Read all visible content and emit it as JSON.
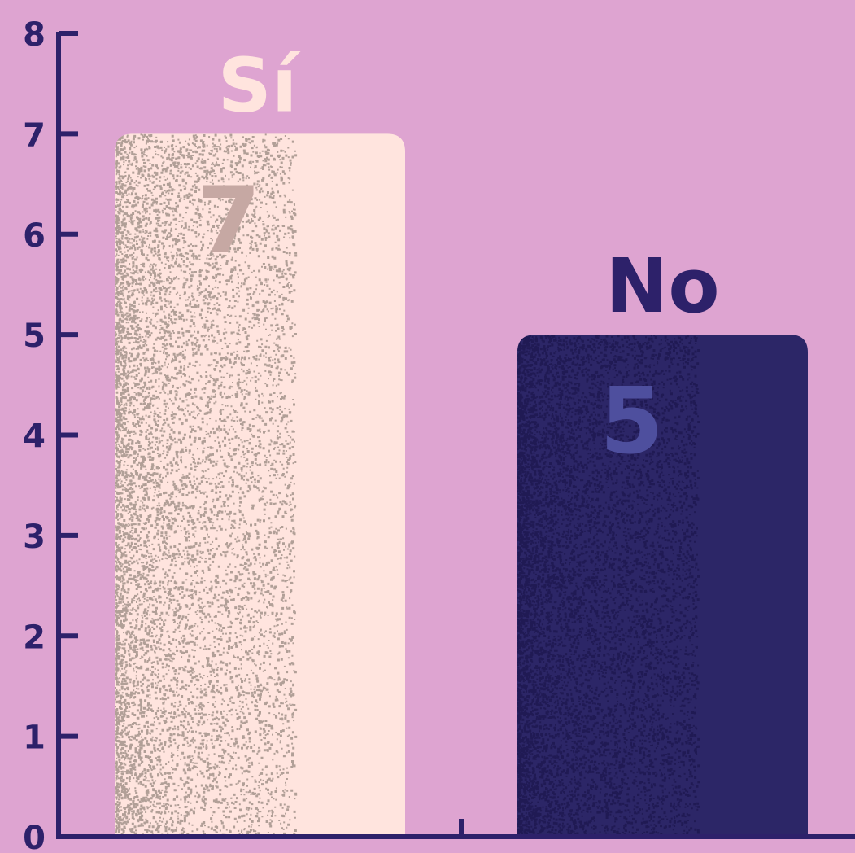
{
  "colors": {
    "background": "#dea4d1",
    "axis": "#2d216a",
    "bar_si": "#ffe4de",
    "bar_si_grain": "#a8978f",
    "label_si": "#ffe4de",
    "value_si": "#c6a8a3",
    "bar_no": "#2c2667",
    "bar_no_grain": "#1f1a52",
    "label_no": "#2d216a",
    "value_no": "#4e4f9e"
  },
  "chart_data": {
    "type": "bar",
    "categories": [
      "Sí",
      "No"
    ],
    "values": [
      7,
      5
    ],
    "value_labels": [
      "7",
      "5"
    ],
    "y_ticks": [
      "0",
      "1",
      "2",
      "3",
      "4",
      "5",
      "6",
      "7",
      "8"
    ],
    "ylim": [
      0,
      8
    ],
    "title": "",
    "xlabel": "",
    "ylabel": "",
    "grid": false,
    "legend": "none"
  }
}
